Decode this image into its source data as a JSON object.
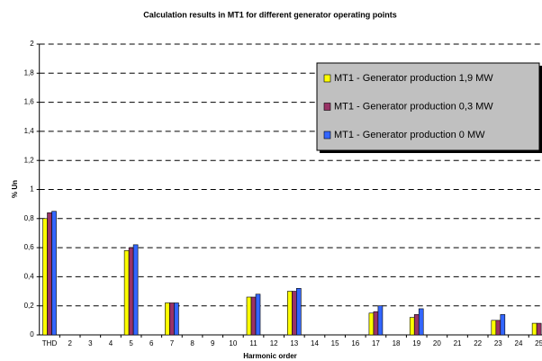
{
  "chart_data": {
    "type": "bar",
    "title": "Calculation results in MT1 for different generator operating points",
    "x_label": "Harmonic order",
    "y_label": "% Un",
    "categories": [
      "THD",
      "2",
      "3",
      "4",
      "5",
      "6",
      "7",
      "8",
      "9",
      "10",
      "11",
      "12",
      "13",
      "14",
      "15",
      "16",
      "17",
      "18",
      "19",
      "20",
      "21",
      "22",
      "23",
      "24",
      "25"
    ],
    "series": [
      {
        "name": "MT1 - Generator production 1,9 MW",
        "color": "#ffff00",
        "values": [
          0.8,
          0,
          0,
          0,
          0.58,
          0,
          0.22,
          0,
          0,
          0,
          0.26,
          0,
          0.3,
          0,
          0,
          0,
          0.15,
          0,
          0.12,
          0,
          0,
          0,
          0.1,
          0,
          0.08
        ]
      },
      {
        "name": "MT1 - Generator production 0,3 MW",
        "color": "#993366",
        "values": [
          0.84,
          0,
          0,
          0,
          0.6,
          0,
          0.22,
          0,
          0,
          0,
          0.26,
          0,
          0.3,
          0,
          0,
          0,
          0.16,
          0,
          0.14,
          0,
          0,
          0,
          0.1,
          0,
          0.08
        ]
      },
      {
        "name": "MT1 - Generator production 0 MW",
        "color": "#3366ff",
        "values": [
          0.85,
          0,
          0,
          0,
          0.62,
          0,
          0.22,
          0,
          0,
          0,
          0.28,
          0,
          0.32,
          0,
          0,
          0,
          0.2,
          0,
          0.18,
          0,
          0,
          0,
          0.14,
          0,
          null
        ]
      }
    ],
    "ylim": [
      0,
      2
    ],
    "yticks": [
      0,
      {
        "value": 0.2,
        "label": "0,2"
      },
      {
        "value": 0.4,
        "label": "0,4"
      },
      {
        "value": 0.6,
        "label": "0,6"
      },
      {
        "value": 0.8,
        "label": "0,8"
      },
      1,
      {
        "value": 1.2,
        "label": "1,2"
      },
      {
        "value": 1.4,
        "label": "1,4"
      },
      {
        "value": 1.6,
        "label": "1,6"
      },
      {
        "value": 1.8,
        "label": "1,8"
      },
      2
    ],
    "grid": true,
    "legend": "upper right"
  }
}
